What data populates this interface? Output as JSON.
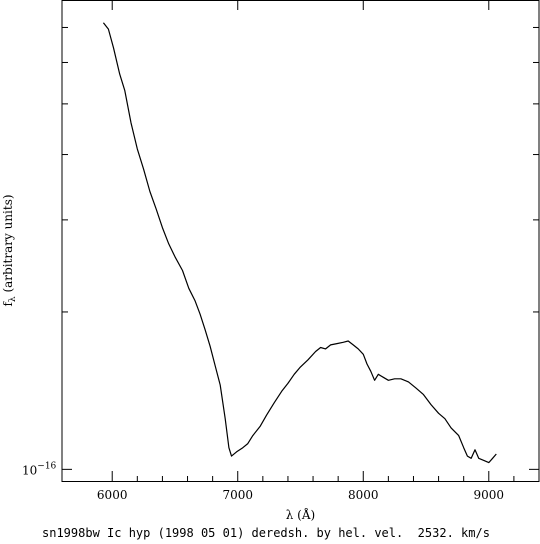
{
  "chart_data": {
    "type": "line",
    "title": "",
    "xlabel": "λ (Å)",
    "ylabel": "f",
    "ylabel_sub": "λ",
    "ylabel_rest": " (arbitrary units)",
    "y_scale": "log",
    "xlim": [
      5600,
      9400
    ],
    "ylim": [
      0.95,
      7.9
    ],
    "y_base_label": "10",
    "y_base_exp": "−16",
    "y_tick_values": [
      1.0,
      2.0,
      3.0,
      4.0,
      5.0,
      6.0,
      7.0
    ],
    "x_ticks": [
      6000,
      7000,
      8000,
      9000
    ],
    "x_tick_labels": [
      "6000",
      "7000",
      "8000",
      "9000"
    ],
    "series": [
      {
        "points": [
          [
            5930,
            7.15
          ],
          [
            5970,
            6.95
          ],
          [
            6010,
            6.4
          ],
          [
            6060,
            5.7
          ],
          [
            6100,
            5.3
          ],
          [
            6150,
            4.6
          ],
          [
            6200,
            4.1
          ],
          [
            6250,
            3.75
          ],
          [
            6300,
            3.4
          ],
          [
            6350,
            3.15
          ],
          [
            6400,
            2.9
          ],
          [
            6450,
            2.7
          ],
          [
            6500,
            2.55
          ],
          [
            6560,
            2.4
          ],
          [
            6610,
            2.22
          ],
          [
            6660,
            2.1
          ],
          [
            6700,
            1.98
          ],
          [
            6740,
            1.85
          ],
          [
            6780,
            1.72
          ],
          [
            6820,
            1.58
          ],
          [
            6860,
            1.45
          ],
          [
            6900,
            1.25
          ],
          [
            6930,
            1.1
          ],
          [
            6950,
            1.06
          ],
          [
            6990,
            1.08
          ],
          [
            7040,
            1.1
          ],
          [
            7080,
            1.12
          ],
          [
            7120,
            1.16
          ],
          [
            7180,
            1.21
          ],
          [
            7230,
            1.27
          ],
          [
            7290,
            1.34
          ],
          [
            7350,
            1.41
          ],
          [
            7400,
            1.46
          ],
          [
            7450,
            1.52
          ],
          [
            7500,
            1.57
          ],
          [
            7560,
            1.62
          ],
          [
            7620,
            1.68
          ],
          [
            7660,
            1.71
          ],
          [
            7700,
            1.7
          ],
          [
            7740,
            1.73
          ],
          [
            7790,
            1.74
          ],
          [
            7840,
            1.75
          ],
          [
            7880,
            1.76
          ],
          [
            7920,
            1.73
          ],
          [
            7960,
            1.7
          ],
          [
            8000,
            1.66
          ],
          [
            8030,
            1.59
          ],
          [
            8060,
            1.54
          ],
          [
            8090,
            1.48
          ],
          [
            8120,
            1.52
          ],
          [
            8160,
            1.5
          ],
          [
            8200,
            1.48
          ],
          [
            8250,
            1.49
          ],
          [
            8300,
            1.49
          ],
          [
            8360,
            1.47
          ],
          [
            8420,
            1.43
          ],
          [
            8480,
            1.39
          ],
          [
            8540,
            1.33
          ],
          [
            8600,
            1.28
          ],
          [
            8650,
            1.25
          ],
          [
            8700,
            1.2
          ],
          [
            8760,
            1.16
          ],
          [
            8800,
            1.1
          ],
          [
            8830,
            1.06
          ],
          [
            8860,
            1.05
          ],
          [
            8890,
            1.09
          ],
          [
            8920,
            1.05
          ],
          [
            8960,
            1.04
          ],
          [
            9000,
            1.03
          ],
          [
            9030,
            1.05
          ],
          [
            9060,
            1.07
          ]
        ]
      }
    ]
  },
  "caption": "sn1998bw Ic hyp (1998 05 01) deredsh. by hel. vel.  2532. km/s"
}
